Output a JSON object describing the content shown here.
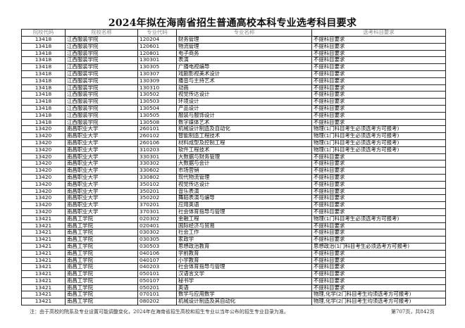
{
  "title": "2024年拟在海南省招生普通高校本科专业选考科目要求",
  "columns": [
    "院校代码",
    "院校名称",
    "专业代码",
    "专业名称",
    "选考科目要求"
  ],
  "rows": [
    [
      "13418",
      "江西服装学院",
      "120204",
      "财务管理",
      "不提科目要求"
    ],
    [
      "13418",
      "江西服装学院",
      "120601",
      "物流管理",
      "不提科目要求"
    ],
    [
      "13418",
      "江西服装学院",
      "120801",
      "电子商务",
      "不提科目要求"
    ],
    [
      "13418",
      "江西服装学院",
      "130301",
      "表演",
      "不提科目要求"
    ],
    [
      "13418",
      "江西服装学院",
      "130305",
      "广播电视编导",
      "不提科目要求"
    ],
    [
      "13418",
      "江西服装学院",
      "130307",
      "戏剧影视美术设计",
      "不提科目要求"
    ],
    [
      "13418",
      "江西服装学院",
      "130309",
      "播音与主持艺术",
      "不提科目要求"
    ],
    [
      "13418",
      "江西服装学院",
      "130310",
      "动画",
      "不提科目要求"
    ],
    [
      "13418",
      "江西服装学院",
      "130502",
      "视觉传达设计",
      "不提科目要求"
    ],
    [
      "13418",
      "江西服装学院",
      "130503",
      "环境设计",
      "不提科目要求"
    ],
    [
      "13418",
      "江西服装学院",
      "130504",
      "产品设计",
      "不提科目要求"
    ],
    [
      "13418",
      "江西服装学院",
      "130505",
      "服装与服饰设计",
      "不提科目要求"
    ],
    [
      "13418",
      "江西服装学院",
      "130508",
      "数字媒体艺术",
      "不提科目要求"
    ],
    [
      "13420",
      "南昌职业大学",
      "260101",
      "机械设计制造及自动化",
      "物理(1门科目考生必须选考方可报考)"
    ],
    [
      "13420",
      "南昌职业大学",
      "260102",
      "智能制造工程技术",
      "物理(1门科目考生必须选考方可报考)"
    ],
    [
      "13420",
      "南昌职业大学",
      "260106",
      "材料成型及控制工程",
      "物理(1门科目考生必须选考方可报考)"
    ],
    [
      "13420",
      "南昌职业大学",
      "310203",
      "软件工程技术",
      "物理(1门科目考生必须选考方可报考)"
    ],
    [
      "13420",
      "南昌职业大学",
      "330301",
      "大数据与财务管理",
      "不提科目要求"
    ],
    [
      "13420",
      "南昌职业大学",
      "330302",
      "大数据与会计",
      "不提科目要求"
    ],
    [
      "13420",
      "南昌职业大学",
      "330602",
      "市场营销",
      "不提科目要求"
    ],
    [
      "13420",
      "南昌职业大学",
      "330802",
      "现代物流管理",
      "不提科目要求"
    ],
    [
      "13420",
      "南昌职业大学",
      "350102",
      "视觉传达设计",
      "不提科目要求"
    ],
    [
      "13420",
      "南昌职业大学",
      "350201",
      "音乐表演",
      "不提科目要求"
    ],
    [
      "13420",
      "南昌职业大学",
      "350202",
      "舞蹈表演与编导",
      "不提科目要求"
    ],
    [
      "13420",
      "南昌职业大学",
      "370201",
      "应用英语",
      "不提科目要求"
    ],
    [
      "13420",
      "南昌职业大学",
      "370301",
      "社会体育指导与管理",
      "不提科目要求"
    ],
    [
      "13421",
      "南昌工学院",
      "020302",
      "金融工程",
      "物理(1门科目考生必须选考方可报考)"
    ],
    [
      "13421",
      "南昌工学院",
      "020401",
      "国际经济与贸易",
      "不提科目要求"
    ],
    [
      "13421",
      "南昌工学院",
      "030302",
      "社会工作",
      "不提科目要求"
    ],
    [
      "13421",
      "南昌工学院",
      "030305",
      "家政学",
      "不提科目要求"
    ],
    [
      "13421",
      "南昌工学院",
      "030503",
      "思想政治教育",
      "思想政治(1门科目考生必须选考方可报考)"
    ],
    [
      "13421",
      "南昌工学院",
      "040106",
      "学前教育",
      "不提科目要求"
    ],
    [
      "13421",
      "南昌工学院",
      "040107",
      "小学教育",
      "不提科目要求"
    ],
    [
      "13421",
      "南昌工学院",
      "040203",
      "社会体育指导与管理",
      "不提科目要求"
    ],
    [
      "13421",
      "南昌工学院",
      "050101",
      "汉语言文学",
      "不提科目要求"
    ],
    [
      "13421",
      "南昌工学院",
      "050107",
      "秘书学",
      "不提科目要求"
    ],
    [
      "13421",
      "南昌工学院",
      "050201",
      "英语",
      "不提科目要求"
    ],
    [
      "13421",
      "南昌工学院",
      "070101",
      "数学与应用数学",
      "物理,化学(2门科目考生均须选考方可报考)"
    ],
    [
      "13421",
      "南昌工学院",
      "080202",
      "机械设计制造及其自动化",
      "物理,化学(2门科目考生均须选考方可报考)"
    ]
  ],
  "footer": {
    "note": "注：由于高校的院系及专业设置可能调整变化，2024年在海南省招生高校和招生专业以当年公布的招生专业目录为准。",
    "page": "第707页，共842页"
  }
}
